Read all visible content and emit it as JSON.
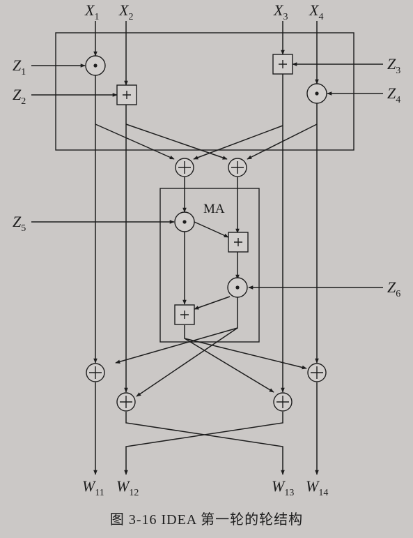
{
  "inputs": [
    {
      "letter": "X",
      "sub": "1"
    },
    {
      "letter": "X",
      "sub": "2"
    },
    {
      "letter": "X",
      "sub": "3"
    },
    {
      "letter": "X",
      "sub": "4"
    }
  ],
  "keys": [
    {
      "letter": "Z",
      "sub": "1"
    },
    {
      "letter": "Z",
      "sub": "2"
    },
    {
      "letter": "Z",
      "sub": "3"
    },
    {
      "letter": "Z",
      "sub": "4"
    },
    {
      "letter": "Z",
      "sub": "5"
    },
    {
      "letter": "Z",
      "sub": "6"
    }
  ],
  "outputs": [
    {
      "letter": "W",
      "sub": "11"
    },
    {
      "letter": "W",
      "sub": "12"
    },
    {
      "letter": "W",
      "sub": "13"
    },
    {
      "letter": "W",
      "sub": "14"
    }
  ],
  "ma_label": "MA",
  "caption": "图 3-16   IDEA 第一轮的轮结构"
}
